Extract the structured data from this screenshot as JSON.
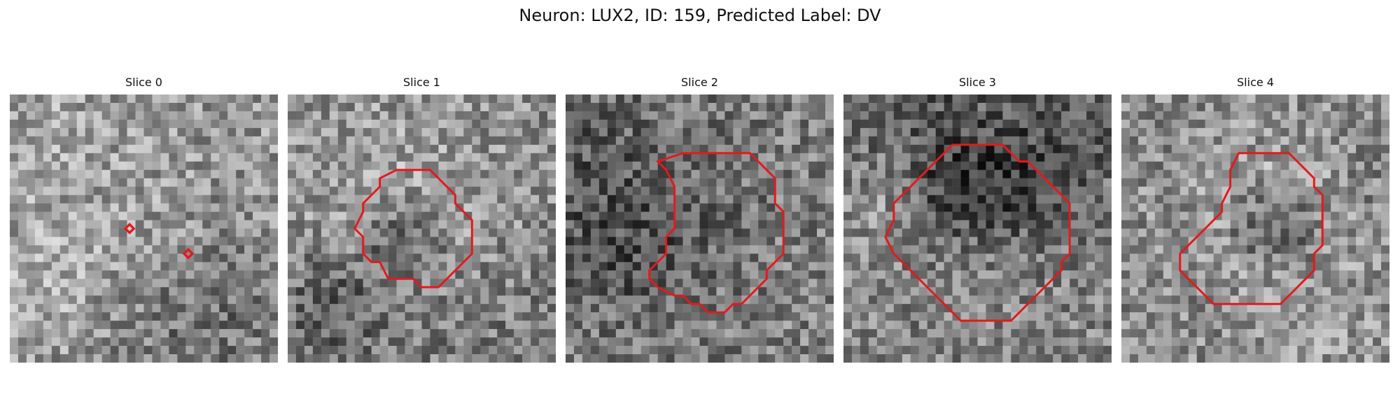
{
  "figure": {
    "title": "Neuron: LUX2, ID: 159, Predicted Label: DV",
    "contour_color": "#e31a1c",
    "colormap": "grayscale",
    "grid_cells_per_side": 32
  },
  "slices": [
    {
      "title": "Slice 0",
      "contour": "two small markers",
      "mean_gray": 150,
      "icon": "noise-texture"
    },
    {
      "title": "Slice 1",
      "contour": "medium roughly circular outline",
      "mean_gray": 140,
      "icon": "noise-texture"
    },
    {
      "title": "Slice 2",
      "contour": "irregular outline",
      "mean_gray": 128,
      "icon": "noise-texture"
    },
    {
      "title": "Slice 3",
      "contour": "large octagonal outline",
      "mean_gray": 130,
      "icon": "noise-texture"
    },
    {
      "title": "Slice 4",
      "contour": "medium outline around dark core",
      "mean_gray": 140,
      "icon": "noise-texture"
    }
  ]
}
